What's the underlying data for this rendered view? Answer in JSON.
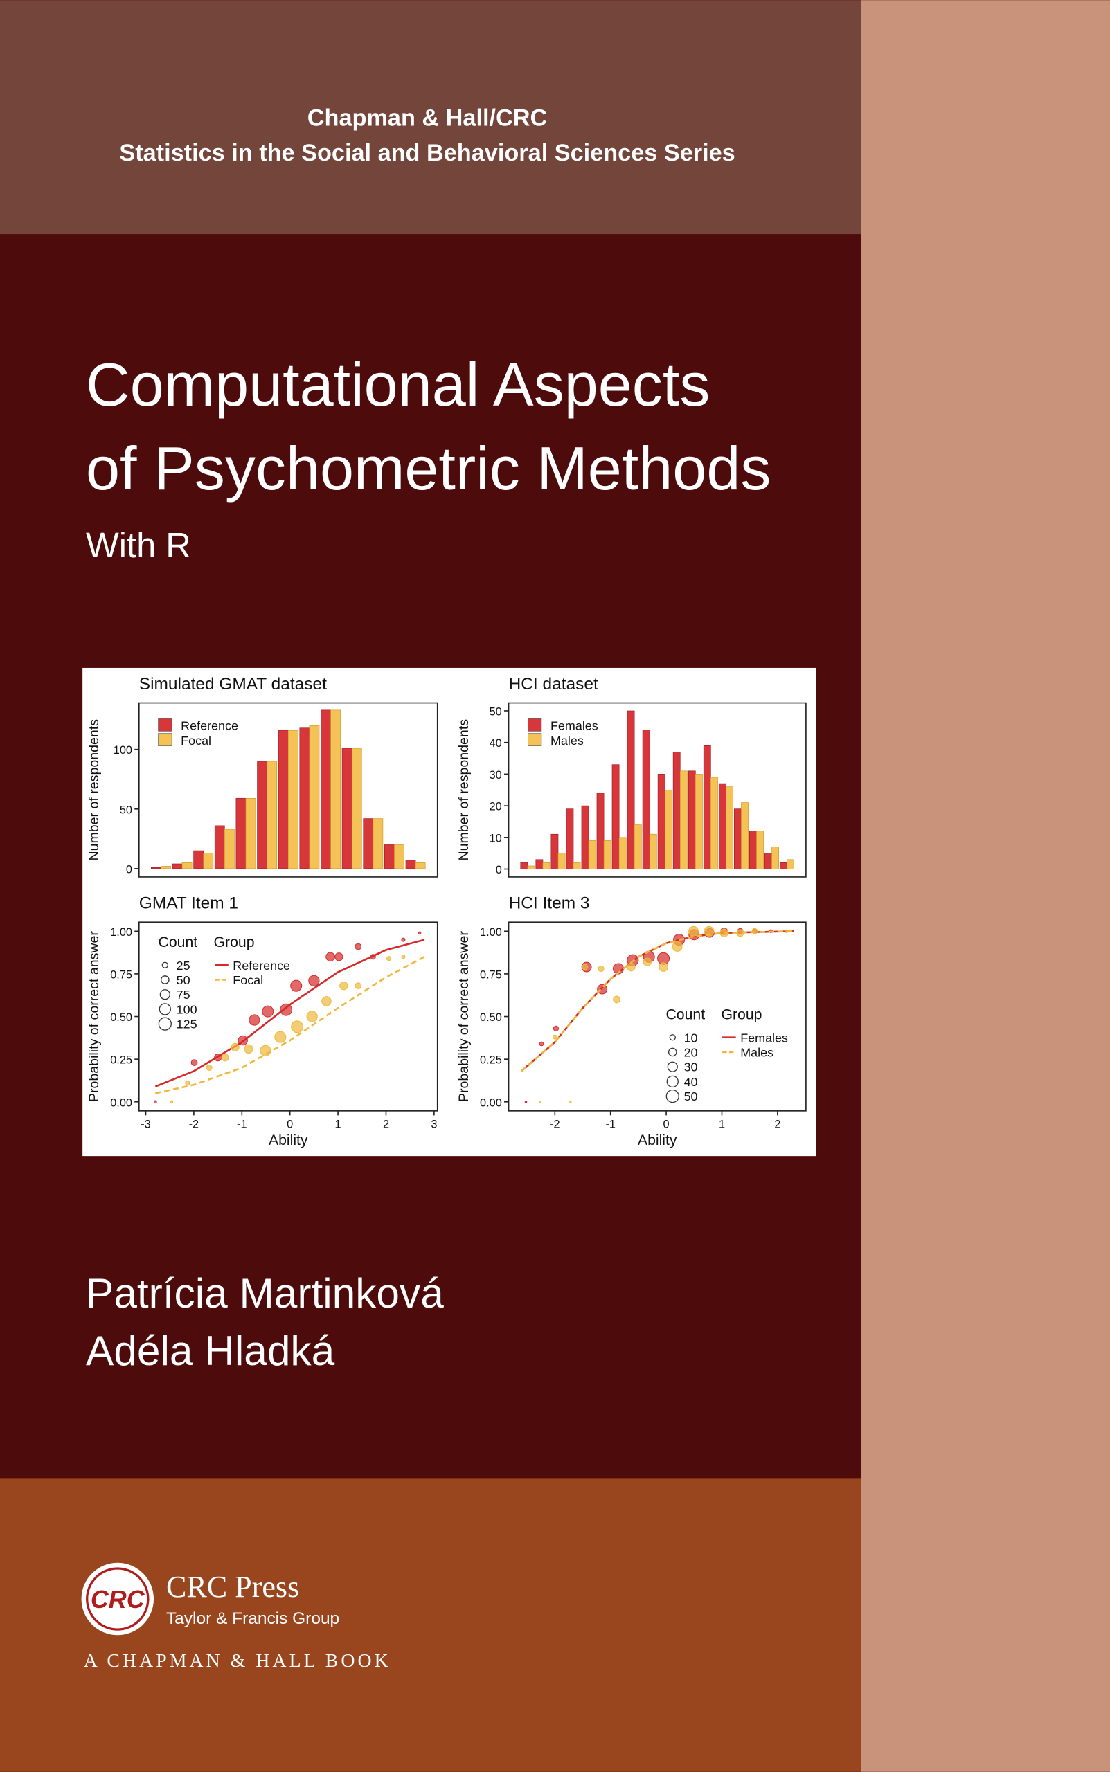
{
  "series_title": [
    "Chapman & Hall/CRC",
    "Statistics in the Social and Behavioral Sciences Series"
  ],
  "title": [
    "Computational Aspects",
    "of Psychometric Methods"
  ],
  "subtitle": "With R",
  "chart_data": [
    {
      "type": "bar",
      "title": "Simulated GMAT dataset",
      "ylabel": "Number of respondents",
      "categories": [
        null,
        null,
        null,
        null,
        null,
        null,
        null,
        null,
        null,
        null,
        null,
        null,
        null
      ],
      "series": [
        {
          "name": "Reference",
          "color": "#d7363b",
          "values": [
            1,
            4,
            15,
            36,
            59,
            90,
            116,
            118,
            133,
            101,
            42,
            20,
            7
          ]
        },
        {
          "name": "Focal",
          "color": "#f5c355",
          "values": [
            2,
            5,
            13,
            33,
            59,
            90,
            116,
            120,
            133,
            101,
            42,
            20,
            5
          ]
        }
      ],
      "ylim": [
        -7,
        139
      ],
      "yticks": [
        0,
        50,
        100
      ]
    },
    {
      "type": "bar",
      "title": "HCI dataset",
      "ylabel": "Number of respondents",
      "categories": [
        null,
        null,
        null,
        null,
        null,
        null,
        null,
        null,
        null,
        null,
        null,
        null,
        null,
        null,
        null,
        null,
        null,
        null
      ],
      "series": [
        {
          "name": "Females",
          "color": "#d7363b",
          "values": [
            2,
            3,
            11,
            19,
            20,
            24,
            33,
            50,
            44,
            30,
            37,
            31,
            39,
            27,
            19,
            12,
            5,
            2
          ]
        },
        {
          "name": "Males",
          "color": "#f5c355",
          "values": [
            1,
            2,
            5,
            2,
            9,
            9,
            10,
            14,
            11,
            25,
            31,
            30,
            29,
            26,
            21,
            12,
            7,
            3
          ]
        }
      ],
      "ylim": [
        -2.5,
        52.5
      ],
      "yticks": [
        0,
        10,
        20,
        30,
        40,
        50
      ]
    },
    {
      "type": "scatter",
      "title": "GMAT Item 1",
      "ylabel": "Probability of correct answer",
      "xlabel": "Ability",
      "xlim": [
        -3.14,
        3.07
      ],
      "xticks": [
        -3,
        -2,
        -1,
        0,
        1,
        2,
        3
      ],
      "ylim": [
        -0.053,
        1.053
      ],
      "yticks": [
        {
          "value": 0,
          "label": "0.00"
        },
        {
          "value": 0.25,
          "label": "0.25"
        },
        {
          "value": 0.5,
          "label": "0.50"
        },
        {
          "value": 0.75,
          "label": "0.75"
        },
        {
          "value": 1,
          "label": "1.00"
        }
      ],
      "size_legend": {
        "title": "Count",
        "values": [
          25,
          50,
          75,
          100,
          125
        ]
      },
      "group_legend_title": "Group",
      "series": [
        {
          "name": "Reference",
          "color": "#d42a2a",
          "dashed": false,
          "x": [
            -2.8,
            -1.99,
            -1.5,
            -0.98,
            -0.74,
            -0.46,
            -0.08,
            0.13,
            0.5,
            0.84,
            1.02,
            1.42,
            1.73,
            2.36,
            2.7
          ],
          "values": [
            0.0,
            0.23,
            0.26,
            0.36,
            0.48,
            0.53,
            0.54,
            0.68,
            0.71,
            0.85,
            0.85,
            0.91,
            0.85,
            0.95,
            0.99
          ],
          "sizes": [
            5,
            30,
            40,
            70,
            90,
            100,
            110,
            100,
            90,
            60,
            50,
            30,
            20,
            10,
            5
          ],
          "curve_x": [
            -2.8,
            -2,
            -1,
            0,
            1,
            2,
            2.8
          ],
          "curve_values": [
            0.09,
            0.18,
            0.35,
            0.57,
            0.76,
            0.89,
            0.95
          ]
        },
        {
          "name": "Focal",
          "color": "#eeb83a",
          "dashed": true,
          "x": [
            -2.46,
            -2.13,
            -1.68,
            -1.35,
            -1.14,
            -0.86,
            -0.51,
            -0.2,
            0.15,
            0.46,
            0.76,
            1.12,
            1.42,
            2.06,
            2.36
          ],
          "values": [
            0.0,
            0.11,
            0.2,
            0.26,
            0.32,
            0.31,
            0.3,
            0.38,
            0.44,
            0.5,
            0.59,
            0.68,
            0.68,
            0.84,
            0.85
          ],
          "sizes": [
            5,
            15,
            25,
            40,
            50,
            60,
            90,
            100,
            110,
            90,
            70,
            50,
            30,
            15,
            10
          ],
          "curve_x": [
            -2.8,
            -2,
            -1,
            0,
            1,
            2,
            2.8
          ],
          "curve_values": [
            0.05,
            0.1,
            0.2,
            0.36,
            0.55,
            0.73,
            0.85
          ]
        }
      ]
    },
    {
      "type": "scatter",
      "title": "HCI Item 3",
      "ylabel": "Probability of correct answer",
      "xlabel": "Ability",
      "xlim": [
        -2.83,
        2.51
      ],
      "xticks": [
        -2,
        -1,
        0,
        1,
        2
      ],
      "ylim": [
        -0.053,
        1.053
      ],
      "yticks": [
        {
          "value": 0,
          "label": "0.00"
        },
        {
          "value": 0.25,
          "label": "0.25"
        },
        {
          "value": 0.5,
          "label": "0.50"
        },
        {
          "value": 0.75,
          "label": "0.75"
        },
        {
          "value": 1,
          "label": "1.00"
        }
      ],
      "size_legend": {
        "title": "Count",
        "values": [
          10,
          20,
          30,
          40,
          50
        ]
      },
      "group_legend_title": "Group",
      "series": [
        {
          "name": "Females",
          "color": "#d42a2a",
          "dashed": false,
          "x": [
            -2.52,
            -2.24,
            -1.98,
            -1.43,
            -1.15,
            -0.86,
            -0.6,
            -0.31,
            -0.05,
            0.23,
            0.5,
            0.78,
            1.04,
            1.33,
            1.59,
            1.88
          ],
          "values": [
            0.0,
            0.34,
            0.43,
            0.79,
            0.66,
            0.78,
            0.83,
            0.85,
            0.84,
            0.95,
            0.98,
            0.99,
            1.0,
            1.0,
            1.0,
            1.0
          ],
          "sizes": [
            1,
            5,
            8,
            30,
            30,
            35,
            40,
            40,
            45,
            40,
            35,
            25,
            15,
            10,
            5,
            3
          ],
          "curve_x": [
            -2.6,
            -2,
            -1.5,
            -1,
            -0.5,
            0,
            0.5,
            1,
            2.3
          ],
          "curve_values": [
            0.18,
            0.35,
            0.55,
            0.72,
            0.85,
            0.93,
            0.97,
            0.99,
            1.0
          ]
        },
        {
          "name": "Males",
          "color": "#eeb83a",
          "dashed": true,
          "x": [
            -2.26,
            -2.0,
            -1.72,
            -1.46,
            -1.17,
            -0.89,
            -0.63,
            -0.34,
            -0.05,
            0.2,
            0.49,
            0.77,
            1.04,
            1.33,
            1.59,
            2.16
          ],
          "values": [
            0.0,
            0.38,
            0.0,
            0.79,
            0.78,
            0.6,
            0.79,
            0.82,
            0.79,
            0.91,
            1.0,
            1.0,
            0.99,
            0.99,
            1.0,
            1.0
          ],
          "sizes": [
            1,
            5,
            1,
            10,
            10,
            15,
            20,
            20,
            25,
            30,
            30,
            30,
            20,
            15,
            10,
            3
          ],
          "curve_x": [
            -2.6,
            -2,
            -1.5,
            -1,
            -0.5,
            0,
            0.5,
            1,
            2.3
          ],
          "curve_values": [
            0.18,
            0.35,
            0.55,
            0.72,
            0.85,
            0.93,
            0.97,
            0.99,
            1.0
          ]
        }
      ]
    }
  ],
  "authors": [
    "Patrícia Martinková",
    "Adéla Hladká"
  ],
  "publisher": {
    "logo": "CRC",
    "name": "CRC Press",
    "group": "Taylor & Francis Group",
    "imprint": "A CHAPMAN & HALL BOOK"
  }
}
